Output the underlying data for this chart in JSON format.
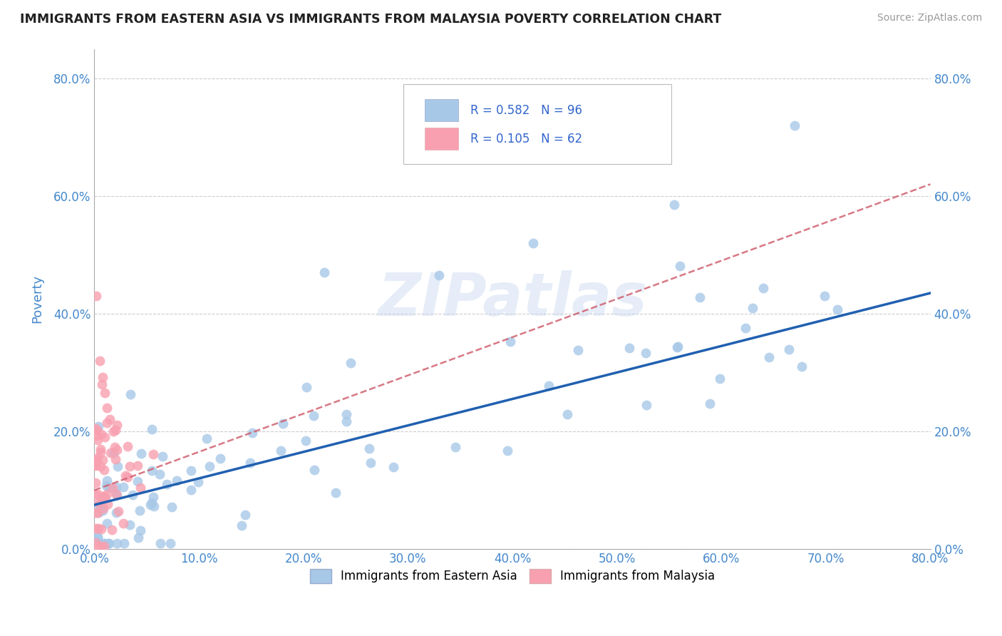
{
  "title": "IMMIGRANTS FROM EASTERN ASIA VS IMMIGRANTS FROM MALAYSIA POVERTY CORRELATION CHART",
  "source": "Source: ZipAtlas.com",
  "ylabel": "Poverty",
  "xlabel_blue": "Immigrants from Eastern Asia",
  "xlabel_pink": "Immigrants from Malaysia",
  "watermark": "ZIPatlas",
  "R_blue": 0.582,
  "N_blue": 96,
  "R_pink": 0.105,
  "N_pink": 62,
  "color_blue": "#a8c8e8",
  "color_blue_line": "#2060b0",
  "color_pink": "#f8a0b0",
  "color_pink_dashed": "#d06070",
  "color_gray_dashed": "#bbbbbb",
  "xlim": [
    0.0,
    0.8
  ],
  "ylim": [
    0.0,
    0.85
  ],
  "x_ticks": [
    0.0,
    0.1,
    0.2,
    0.3,
    0.4,
    0.5,
    0.6,
    0.7,
    0.8
  ],
  "y_ticks": [
    0.0,
    0.2,
    0.4,
    0.6,
    0.8
  ],
  "blue_line_start_y": 0.075,
  "blue_line_end_y": 0.435,
  "pink_line_start_y": 0.1,
  "pink_line_end_y": 0.62,
  "legend_R_blue": "R = 0.582",
  "legend_N_blue": "N = 96",
  "legend_R_pink": "R = 0.105",
  "legend_N_pink": "N = 62",
  "tick_color": "#4488cc",
  "ylabel_color": "#4488cc"
}
